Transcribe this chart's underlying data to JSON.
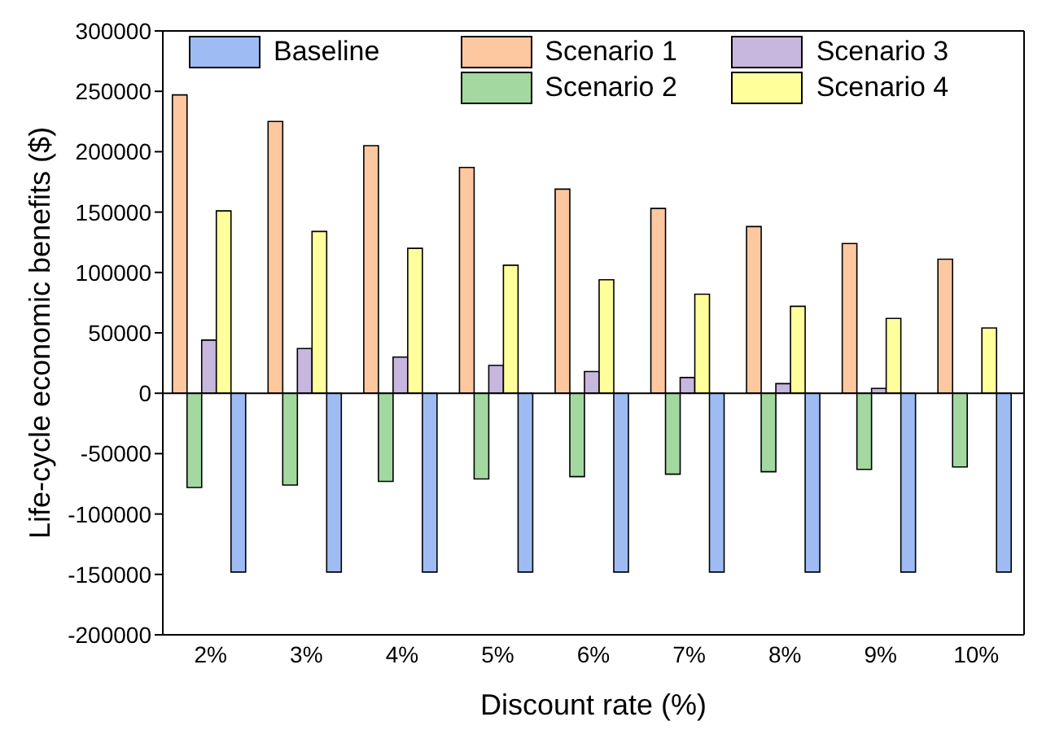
{
  "chart_data": {
    "type": "bar",
    "xlabel": "Discount rate (%)",
    "ylabel": "Life-cycle economic benefits ($)",
    "categories": [
      "2%",
      "3%",
      "4%",
      "5%",
      "6%",
      "7%",
      "8%",
      "9%",
      "10%"
    ],
    "series": [
      {
        "name": "Scenario 1",
        "color": "#fdc89f",
        "values": [
          247000,
          225000,
          205000,
          187000,
          169000,
          153000,
          138000,
          124000,
          111000
        ]
      },
      {
        "name": "Scenario 2",
        "color": "#a3d8a1",
        "values": [
          -78000,
          -76000,
          -73000,
          -71000,
          -69000,
          -67000,
          -65000,
          -63000,
          -61000
        ]
      },
      {
        "name": "Scenario 3",
        "color": "#c7b6dd",
        "values": [
          44000,
          37000,
          30000,
          23000,
          18000,
          13000,
          8000,
          4000,
          0
        ]
      },
      {
        "name": "Scenario 4",
        "color": "#ffff9c",
        "values": [
          151000,
          134000,
          120000,
          106000,
          94000,
          82000,
          72000,
          62000,
          54000
        ]
      },
      {
        "name": "Baseline",
        "color": "#9ebcf3",
        "values": [
          -148000,
          -148000,
          -148000,
          -148000,
          -148000,
          -148000,
          -148000,
          -148000,
          -148000
        ]
      }
    ],
    "ylim": [
      -200000,
      300000
    ],
    "yticks": [
      -200000,
      -150000,
      -100000,
      -50000,
      0,
      50000,
      100000,
      150000,
      200000,
      250000,
      300000
    ],
    "ref_lines": [
      {
        "axis": "y",
        "value": 0
      }
    ],
    "legend": "top"
  }
}
